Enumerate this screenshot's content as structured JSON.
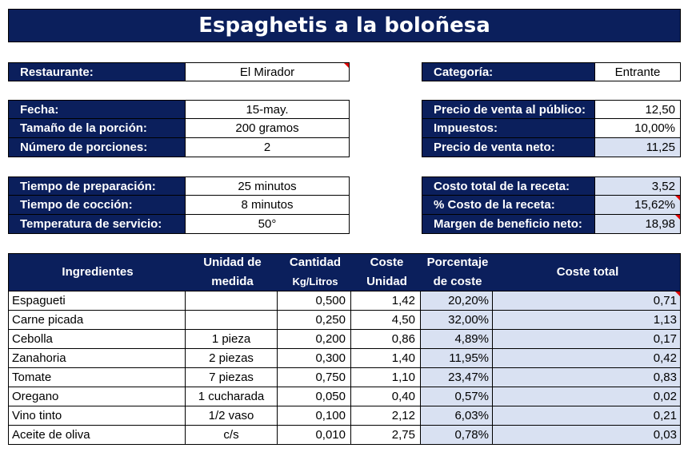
{
  "title": "Espaghetis a la boloñesa",
  "info_left": [
    {
      "label": "Restaurante:",
      "value": "El Mirador"
    },
    {
      "label": "Fecha:",
      "value": "15-may."
    },
    {
      "label": "Tamaño de la porción:",
      "value": "200 gramos"
    },
    {
      "label": "Número de porciones:",
      "value": "2"
    },
    {
      "label": "Tiempo de preparación:",
      "value": "25 minutos"
    },
    {
      "label": "Tiempo de cocción:",
      "value": "8 minutos"
    },
    {
      "label": "Temperatura de servicio:",
      "value": "50°"
    }
  ],
  "info_right": [
    {
      "label": "Categoría:",
      "value": "Entrante"
    },
    {
      "label": "Precio de venta al público:",
      "value": "12,50"
    },
    {
      "label": "Impuestos:",
      "value": "10,00%"
    },
    {
      "label": "Precio de venta neto:",
      "value": "11,25"
    },
    {
      "label": "Costo total de la receta:",
      "value": "3,52"
    },
    {
      "label": "% Costo de la receta:",
      "value": "15,62%"
    },
    {
      "label": "Margen de beneficio neto:",
      "value": "18,98"
    }
  ],
  "table": {
    "headers": {
      "ingredientes": "Ingredientes",
      "unidad_1": "Unidad de",
      "unidad_2": "medida",
      "cantidad_1": "Cantidad",
      "cantidad_2": "Kg/Litros",
      "coste_1": "Coste",
      "coste_2": "Unidad",
      "porcentaje_1": "Porcentaje",
      "porcentaje_2": "de coste",
      "total": "Coste total"
    },
    "rows": [
      {
        "ingrediente": "Espagueti",
        "unidad": "",
        "cantidad": "0,500",
        "coste": "1,42",
        "porcentaje": "20,20%",
        "total": "0,71"
      },
      {
        "ingrediente": "Carne picada",
        "unidad": "",
        "cantidad": "0,250",
        "coste": "4,50",
        "porcentaje": "32,00%",
        "total": "1,13"
      },
      {
        "ingrediente": "Cebolla",
        "unidad": "1 pieza",
        "cantidad": "0,200",
        "coste": "0,86",
        "porcentaje": "4,89%",
        "total": "0,17"
      },
      {
        "ingrediente": "Zanahoria",
        "unidad": "2 piezas",
        "cantidad": "0,300",
        "coste": "1,40",
        "porcentaje": "11,95%",
        "total": "0,42"
      },
      {
        "ingrediente": "Tomate",
        "unidad": "7 piezas",
        "cantidad": "0,750",
        "coste": "1,10",
        "porcentaje": "23,47%",
        "total": "0,83"
      },
      {
        "ingrediente": "Oregano",
        "unidad": "1 cucharada",
        "cantidad": "0,050",
        "coste": "0,40",
        "porcentaje": "0,57%",
        "total": "0,02"
      },
      {
        "ingrediente": "Vino tinto",
        "unidad": "1/2 vaso",
        "cantidad": "0,100",
        "coste": "2,12",
        "porcentaje": "6,03%",
        "total": "0,21"
      },
      {
        "ingrediente": "Aceite de oliva",
        "unidad": "c/s",
        "cantidad": "0,010",
        "coste": "2,75",
        "porcentaje": "0,78%",
        "total": "0,03"
      }
    ]
  },
  "colors": {
    "header_bg": "#0b1f5c",
    "shade": "#d9e1f2",
    "comment_marker": "#e00000"
  }
}
